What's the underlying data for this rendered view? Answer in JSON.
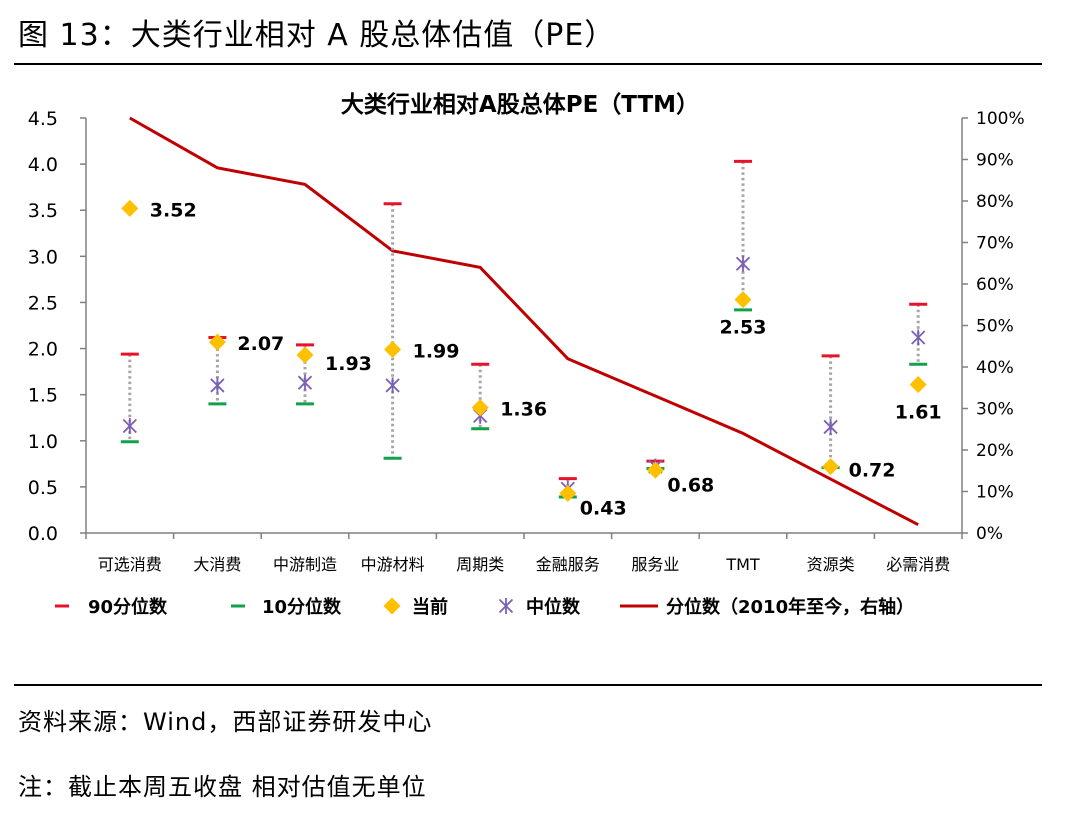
{
  "figure_title": "图 13：大类行业相对 A 股总体估值（PE）",
  "source_text": "资料来源：Wind，西部证券研发中心",
  "note_text": "注：截止本周五收盘 相对估值无单位",
  "colors": {
    "p90": "#e8102a",
    "p10": "#12a14a",
    "current": "#ffc000",
    "median": "#7b5fb5",
    "percentile_line": "#c00000",
    "range_line": "#a6a6a6"
  },
  "chart_data": {
    "type": "scatter",
    "title": "大类行业相对A股总体PE（TTM）",
    "categories": [
      "可选消费",
      "大消费",
      "中游制造",
      "中游材料",
      "周期类",
      "金融服务",
      "服务业",
      "TMT",
      "资源类",
      "必需消费"
    ],
    "y_left": {
      "ticks": [
        "0.0",
        "0.5",
        "1.0",
        "1.5",
        "2.0",
        "2.5",
        "3.0",
        "3.5",
        "4.0",
        "4.5"
      ],
      "range": [
        0,
        4.5
      ]
    },
    "y_right": {
      "ticks": [
        "0%",
        "10%",
        "20%",
        "30%",
        "40%",
        "50%",
        "60%",
        "70%",
        "80%",
        "90%",
        "100%"
      ],
      "range": [
        0,
        100
      ]
    },
    "series": [
      {
        "name": "90分位数",
        "marker": "dash",
        "axis": "left",
        "values": [
          1.94,
          2.12,
          2.04,
          3.57,
          1.83,
          0.59,
          0.78,
          4.03,
          1.92,
          2.48
        ]
      },
      {
        "name": "10分位数",
        "marker": "dash",
        "axis": "left",
        "values": [
          0.99,
          1.4,
          1.4,
          0.81,
          1.13,
          0.39,
          0.7,
          2.42,
          0.71,
          1.83
        ]
      },
      {
        "name": "当前",
        "marker": "diamond",
        "axis": "left",
        "values": [
          3.52,
          2.07,
          1.93,
          1.99,
          1.36,
          0.43,
          0.68,
          2.53,
          0.72,
          1.61
        ]
      },
      {
        "name": "中位数",
        "marker": "star",
        "axis": "left",
        "values": [
          1.16,
          1.6,
          1.63,
          1.6,
          1.27,
          0.48,
          0.72,
          2.92,
          1.15,
          2.12
        ]
      },
      {
        "name": "分位数（2010年至今，右轴）",
        "marker": "line",
        "axis": "right",
        "values": [
          100,
          88,
          84,
          68,
          64,
          42,
          33,
          24,
          13,
          2
        ]
      }
    ],
    "data_labels": [
      "3.52",
      "2.07",
      "1.93",
      "1.99",
      "1.36",
      "0.43",
      "0.68",
      "2.53",
      "0.72",
      "1.61"
    ],
    "legend_labels": [
      "90分位数",
      "10分位数",
      "当前",
      "中位数",
      "分位数（2010年至今，右轴）"
    ],
    "legend_position": "bottom"
  }
}
